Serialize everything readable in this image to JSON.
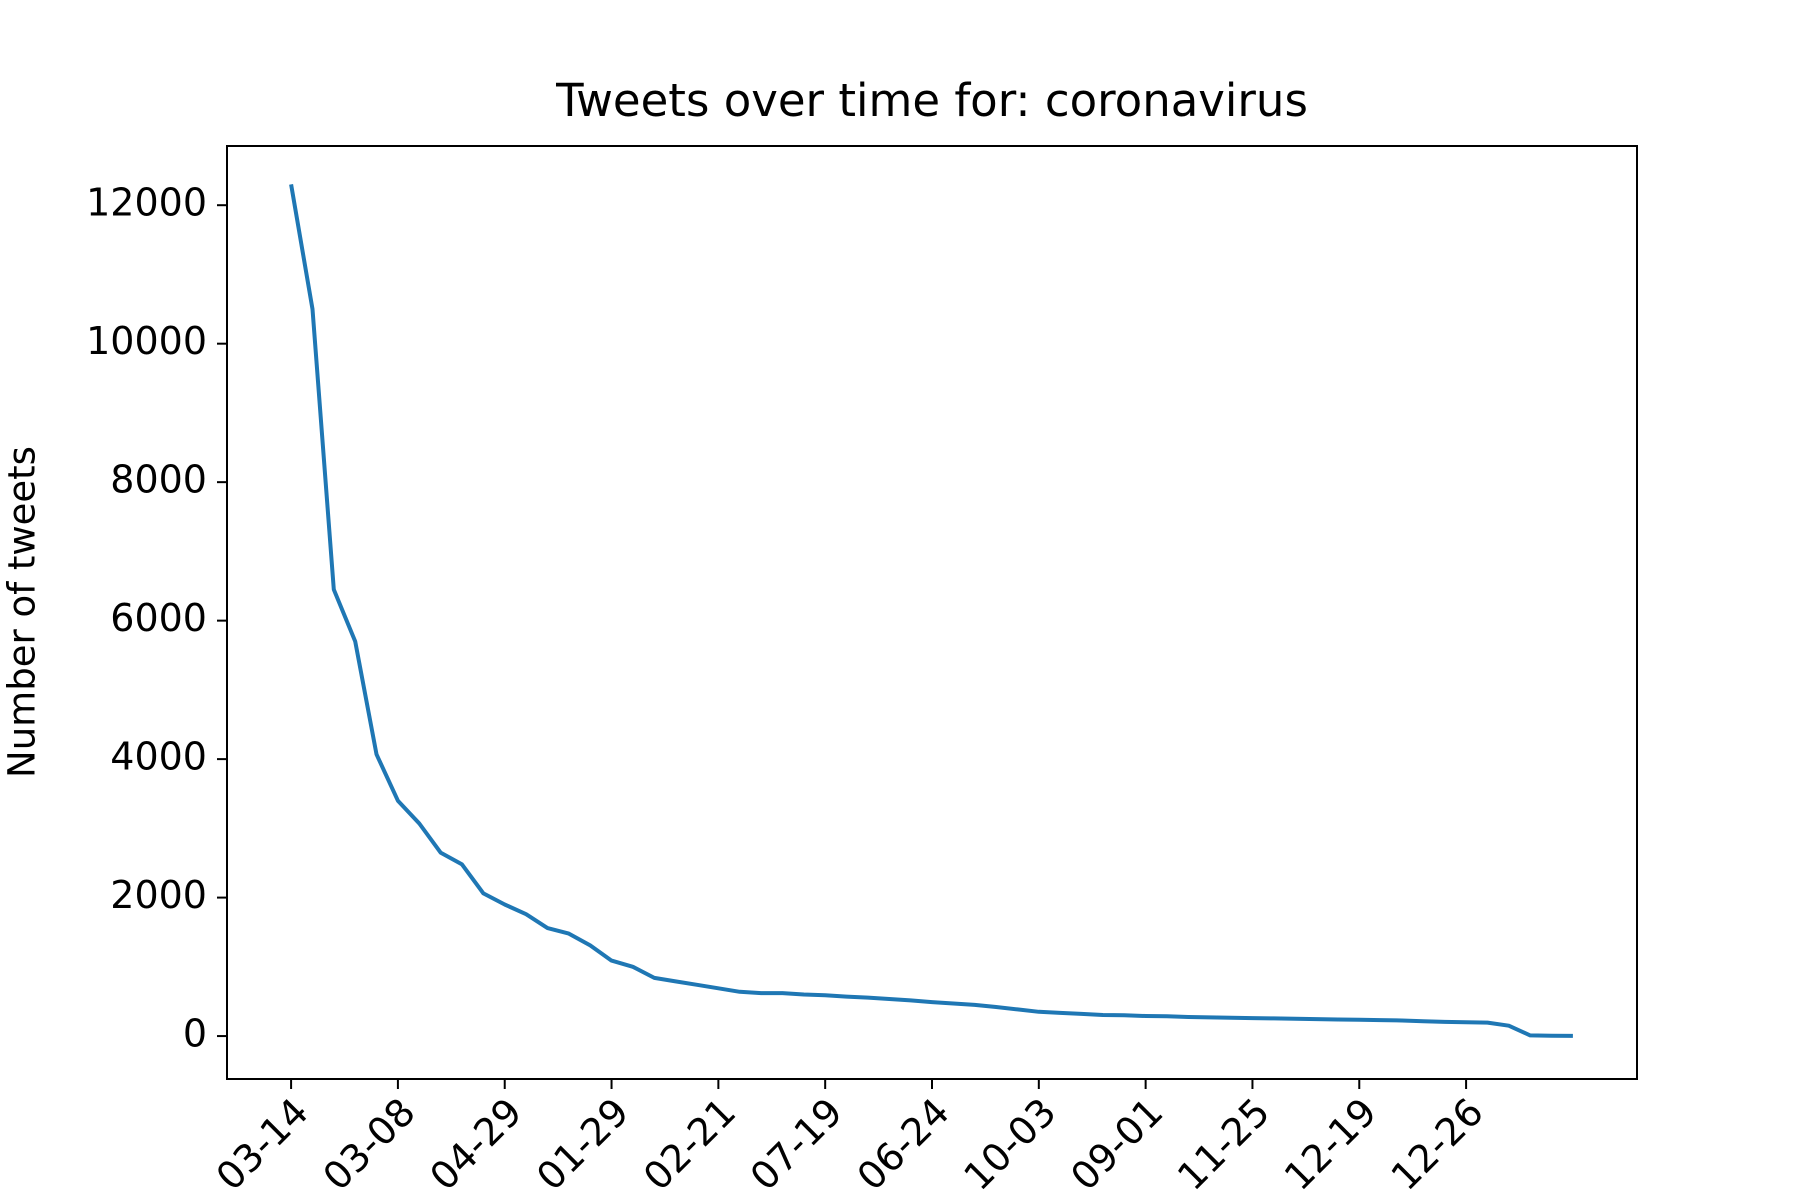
{
  "chart_data": {
    "type": "line",
    "title": "Tweets over time for: coronavirus",
    "ylabel": "Number of tweets",
    "categories": [
      "03-14",
      null,
      null,
      null,
      null,
      "03-08",
      null,
      null,
      null,
      null,
      "04-29",
      null,
      null,
      null,
      null,
      "01-29",
      null,
      null,
      null,
      null,
      "02-21",
      null,
      null,
      null,
      null,
      "07-19",
      null,
      null,
      null,
      null,
      "06-24",
      null,
      null,
      null,
      null,
      "10-03",
      null,
      null,
      null,
      null,
      "09-01",
      null,
      null,
      null,
      null,
      "11-25",
      null,
      null,
      null,
      null,
      "12-19",
      null,
      null,
      null,
      null,
      "12-26",
      null,
      null,
      null,
      null,
      null
    ],
    "series": [
      {
        "name": "coronavirus",
        "color": "#1f77b4",
        "values": [
          12300,
          10500,
          6450,
          5700,
          4070,
          3400,
          3070,
          2650,
          2480,
          2060,
          1900,
          1760,
          1560,
          1480,
          1310,
          1090,
          1000,
          840,
          790,
          740,
          690,
          640,
          620,
          620,
          600,
          590,
          570,
          555,
          535,
          515,
          490,
          470,
          450,
          420,
          385,
          350,
          335,
          320,
          305,
          300,
          290,
          285,
          275,
          270,
          265,
          260,
          255,
          250,
          245,
          240,
          235,
          230,
          225,
          215,
          205,
          200,
          195,
          150,
          10,
          5,
          2
        ]
      }
    ],
    "xlim": [
      -3,
      63
    ],
    "ylim": [
      -620,
      12855
    ],
    "yticks": [
      0,
      2000,
      4000,
      6000,
      8000,
      10000,
      12000
    ]
  }
}
